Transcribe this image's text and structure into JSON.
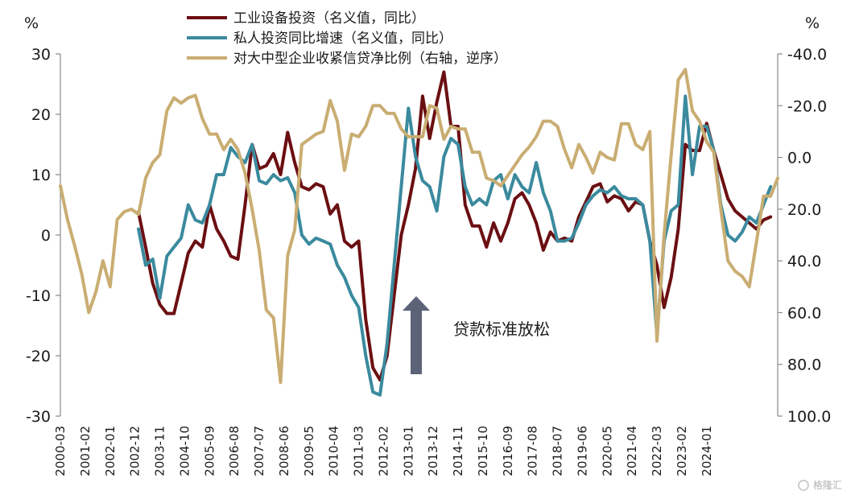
{
  "chart_data": {
    "type": "line",
    "left_axis": {
      "unit": "%",
      "ylim": [
        -30,
        30
      ],
      "ticks": [
        "30",
        "20",
        "10",
        "0",
        "-10",
        "-20",
        "-30"
      ]
    },
    "right_axis": {
      "unit": "%",
      "ylim": [
        -40,
        100
      ],
      "reversed": true,
      "ticks": [
        "-40.0",
        "-20.0",
        "0.0",
        "20.0",
        "40.0",
        "60.0",
        "80.0",
        "100.0"
      ]
    },
    "x_labels": [
      "2000-03",
      "2001-02",
      "2002-01",
      "2002-12",
      "2003-11",
      "2004-10",
      "2005-09",
      "2006-08",
      "2007-07",
      "2008-06",
      "2009-05",
      "2010-04",
      "2011-03",
      "2012-02",
      "2013-01",
      "2013-12",
      "2014-11",
      "2015-10",
      "2016-09",
      "2017-08",
      "2018-07",
      "2019-06",
      "2020-05",
      "2021-04",
      "2022-03",
      "2023-02",
      "2024-01"
    ],
    "grid": false,
    "legend_position": "top-center",
    "series": [
      {
        "name": "工业设备投资（名义值，同比）",
        "axis": "left",
        "color": "#6b0f12",
        "points": [
          [
            11,
            3.8
          ],
          [
            12,
            -2
          ],
          [
            13,
            -8
          ],
          [
            14,
            -11.5
          ],
          [
            15,
            -13
          ],
          [
            16,
            -13
          ],
          [
            17,
            -8
          ],
          [
            18,
            -3
          ],
          [
            19,
            -1
          ],
          [
            20,
            -2
          ],
          [
            21,
            5
          ],
          [
            22,
            1
          ],
          [
            23,
            -1
          ],
          [
            24,
            -3.5
          ],
          [
            25,
            -4
          ],
          [
            26,
            5
          ],
          [
            27,
            15
          ],
          [
            28,
            11
          ],
          [
            29,
            11.5
          ],
          [
            30,
            13.5
          ],
          [
            31,
            10
          ],
          [
            32,
            17
          ],
          [
            33,
            12
          ],
          [
            34,
            8
          ],
          [
            35,
            7.5
          ],
          [
            36,
            8.5
          ],
          [
            37,
            8
          ],
          [
            38,
            3.5
          ],
          [
            39,
            5
          ],
          [
            40,
            -1
          ],
          [
            41,
            -2
          ],
          [
            42,
            -1
          ],
          [
            43,
            -14
          ],
          [
            44,
            -22
          ],
          [
            45,
            -24
          ],
          [
            46,
            -20
          ],
          [
            47,
            -10
          ],
          [
            48,
            0
          ],
          [
            49,
            5
          ],
          [
            50,
            11
          ],
          [
            51,
            23
          ],
          [
            52,
            16
          ],
          [
            53,
            22
          ],
          [
            54,
            27
          ],
          [
            55,
            18
          ],
          [
            56,
            18
          ],
          [
            57,
            5
          ],
          [
            58,
            1.5
          ],
          [
            59,
            1.5
          ],
          [
            60,
            -2
          ],
          [
            61,
            2
          ],
          [
            62,
            -1
          ],
          [
            63,
            2
          ],
          [
            64,
            6
          ],
          [
            65,
            7
          ],
          [
            66,
            5
          ],
          [
            67,
            2
          ],
          [
            68,
            -2.5
          ],
          [
            69,
            0.5
          ],
          [
            70,
            -1
          ],
          [
            71,
            -0.5
          ],
          [
            72,
            -1
          ],
          [
            73,
            3
          ],
          [
            74,
            5.5
          ],
          [
            75,
            8
          ],
          [
            76,
            8.5
          ],
          [
            77,
            5.5
          ],
          [
            78,
            6.5
          ],
          [
            79,
            6
          ],
          [
            80,
            4
          ],
          [
            81,
            5.5
          ],
          [
            82,
            5
          ],
          [
            83,
            -1
          ],
          [
            84,
            -5
          ],
          [
            85,
            -12
          ],
          [
            86,
            -7
          ],
          [
            87,
            1
          ],
          [
            88,
            15
          ],
          [
            89,
            14
          ],
          [
            90,
            14
          ],
          [
            91,
            18.5
          ],
          [
            92,
            14
          ],
          [
            93,
            10
          ],
          [
            94,
            6
          ],
          [
            95,
            4
          ],
          [
            96,
            3
          ],
          [
            97,
            2
          ],
          [
            98,
            1
          ],
          [
            99,
            2.5
          ],
          [
            100,
            3
          ]
        ]
      },
      {
        "name": "私人投资同比增速（名义值，同比）",
        "axis": "left",
        "color": "#3b8a9e",
        "points": [
          [
            11,
            1
          ],
          [
            12,
            -5
          ],
          [
            13,
            -4
          ],
          [
            14,
            -10.5
          ],
          [
            15,
            -3.5
          ],
          [
            16,
            -2
          ],
          [
            17,
            -0.5
          ],
          [
            18,
            5
          ],
          [
            19,
            2.5
          ],
          [
            20,
            2
          ],
          [
            21,
            5
          ],
          [
            22,
            10
          ],
          [
            23,
            10
          ],
          [
            24,
            14.5
          ],
          [
            25,
            13
          ],
          [
            26,
            12
          ],
          [
            27,
            15
          ],
          [
            28,
            9
          ],
          [
            29,
            8.5
          ],
          [
            30,
            10
          ],
          [
            31,
            9
          ],
          [
            32,
            9.5
          ],
          [
            33,
            7
          ],
          [
            34,
            0
          ],
          [
            35,
            -1.5
          ],
          [
            36,
            -0.5
          ],
          [
            37,
            -1
          ],
          [
            38,
            -1.5
          ],
          [
            39,
            -5
          ],
          [
            40,
            -7
          ],
          [
            41,
            -10
          ],
          [
            42,
            -12
          ],
          [
            43,
            -20
          ],
          [
            44,
            -26
          ],
          [
            45,
            -26.5
          ],
          [
            46,
            -18
          ],
          [
            47,
            -5
          ],
          [
            48,
            8
          ],
          [
            49,
            21
          ],
          [
            50,
            13
          ],
          [
            51,
            9
          ],
          [
            52,
            8
          ],
          [
            53,
            4
          ],
          [
            54,
            13
          ],
          [
            55,
            16
          ],
          [
            56,
            15
          ],
          [
            57,
            8
          ],
          [
            58,
            5
          ],
          [
            59,
            6
          ],
          [
            60,
            5
          ],
          [
            61,
            9
          ],
          [
            62,
            10
          ],
          [
            63,
            6
          ],
          [
            64,
            10
          ],
          [
            65,
            8
          ],
          [
            66,
            7
          ],
          [
            67,
            12
          ],
          [
            68,
            7
          ],
          [
            69,
            4
          ],
          [
            70,
            -1
          ],
          [
            71,
            -1
          ],
          [
            72,
            -0.5
          ],
          [
            73,
            2
          ],
          [
            74,
            5
          ],
          [
            75,
            6.5
          ],
          [
            76,
            7.5
          ],
          [
            77,
            7
          ],
          [
            78,
            8
          ],
          [
            79,
            6.5
          ],
          [
            80,
            6
          ],
          [
            81,
            6
          ],
          [
            82,
            5
          ],
          [
            83,
            -1
          ],
          [
            84,
            -16.5
          ],
          [
            85,
            -1
          ],
          [
            86,
            4
          ],
          [
            87,
            5
          ],
          [
            88,
            23
          ],
          [
            89,
            10
          ],
          [
            90,
            18
          ],
          [
            91,
            18
          ],
          [
            92,
            14
          ],
          [
            93,
            5
          ],
          [
            94,
            0
          ],
          [
            95,
            -1
          ],
          [
            96,
            0.5
          ],
          [
            97,
            3
          ],
          [
            98,
            2
          ],
          [
            99,
            5
          ],
          [
            100,
            8
          ]
        ]
      },
      {
        "name": "对大中型企业收紧信贷净比例（右轴，逆序）",
        "axis": "right",
        "color": "#c9ad72",
        "points": [
          [
            0,
            11
          ],
          [
            1,
            24
          ],
          [
            2,
            34
          ],
          [
            3,
            45
          ],
          [
            4,
            60
          ],
          [
            5,
            52
          ],
          [
            6,
            40
          ],
          [
            7,
            50
          ],
          [
            8,
            24
          ],
          [
            9,
            21
          ],
          [
            10,
            20
          ],
          [
            11,
            22
          ],
          [
            12,
            8
          ],
          [
            13,
            2
          ],
          [
            14,
            -1
          ],
          [
            15,
            -18
          ],
          [
            16,
            -23
          ],
          [
            17,
            -21
          ],
          [
            18,
            -23
          ],
          [
            19,
            -24
          ],
          [
            20,
            -15
          ],
          [
            21,
            -9
          ],
          [
            22,
            -9
          ],
          [
            23,
            -3
          ],
          [
            24,
            -7
          ],
          [
            25,
            -3
          ],
          [
            26,
            6
          ],
          [
            27,
            20
          ],
          [
            28,
            36
          ],
          [
            29,
            59
          ],
          [
            30,
            62
          ],
          [
            31,
            87
          ],
          [
            32,
            38
          ],
          [
            33,
            28
          ],
          [
            34,
            -5
          ],
          [
            35,
            -7
          ],
          [
            36,
            -9
          ],
          [
            37,
            -10
          ],
          [
            38,
            -22
          ],
          [
            39,
            -14
          ],
          [
            40,
            5
          ],
          [
            41,
            -9
          ],
          [
            42,
            -8
          ],
          [
            43,
            -12
          ],
          [
            44,
            -20
          ],
          [
            45,
            -20
          ],
          [
            46,
            -17
          ],
          [
            47,
            -17
          ],
          [
            48,
            -11
          ],
          [
            49,
            -8
          ],
          [
            50,
            -8
          ],
          [
            51,
            -8
          ],
          [
            52,
            -20
          ],
          [
            53,
            -19
          ],
          [
            54,
            -7
          ],
          [
            55,
            -12
          ],
          [
            56,
            -11
          ],
          [
            57,
            -11
          ],
          [
            58,
            -2
          ],
          [
            59,
            -2
          ],
          [
            60,
            8
          ],
          [
            61,
            9
          ],
          [
            62,
            11
          ],
          [
            63,
            7
          ],
          [
            64,
            3
          ],
          [
            65,
            -1
          ],
          [
            66,
            -4
          ],
          [
            67,
            -8
          ],
          [
            68,
            -14
          ],
          [
            69,
            -14
          ],
          [
            70,
            -12
          ],
          [
            71,
            -3
          ],
          [
            72,
            4
          ],
          [
            73,
            -5
          ],
          [
            74,
            0
          ],
          [
            75,
            6
          ],
          [
            76,
            -2
          ],
          [
            77,
            0
          ],
          [
            78,
            1
          ],
          [
            79,
            -13
          ],
          [
            80,
            -13
          ],
          [
            81,
            -5
          ],
          [
            82,
            -3
          ],
          [
            83,
            -10
          ],
          [
            84,
            71
          ],
          [
            85,
            30
          ],
          [
            86,
            -1
          ],
          [
            87,
            -30
          ],
          [
            88,
            -34
          ],
          [
            89,
            -18
          ],
          [
            90,
            -14
          ],
          [
            91,
            -6
          ],
          [
            92,
            -2
          ],
          [
            93,
            20
          ],
          [
            94,
            40
          ],
          [
            95,
            44
          ],
          [
            96,
            46
          ],
          [
            97,
            50
          ],
          [
            98,
            33
          ],
          [
            99,
            15
          ],
          [
            100,
            15
          ],
          [
            101,
            8
          ]
        ]
      }
    ],
    "annotations": [
      {
        "text": "贷款标准放松",
        "arrow": "up"
      }
    ]
  },
  "watermark": {
    "text": "格隆汇"
  }
}
